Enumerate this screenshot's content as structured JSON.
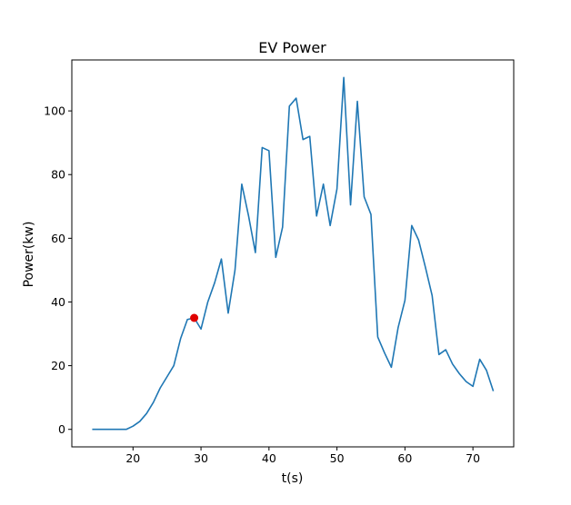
{
  "chart_data": {
    "type": "line",
    "title": "EV Power",
    "xlabel": "t(s)",
    "ylabel": "Power(kw)",
    "xlim": [
      11,
      76
    ],
    "ylim": [
      -5.5,
      116
    ],
    "xticks": [
      20,
      30,
      40,
      50,
      60,
      70
    ],
    "yticks": [
      0,
      20,
      40,
      60,
      80,
      100
    ],
    "grid": false,
    "line_color": "#1f77b4",
    "marker_color": "#e00000",
    "series": [
      {
        "x": [
          14,
          15,
          16,
          17,
          18,
          19,
          20,
          21,
          22,
          23,
          24,
          25,
          26,
          27,
          28,
          29,
          30,
          31,
          32,
          33,
          34,
          35,
          36,
          37,
          38,
          39,
          40,
          41,
          42,
          43,
          44,
          45,
          46,
          47,
          48,
          49,
          50,
          51,
          52,
          53,
          54,
          55,
          56,
          57,
          58,
          59,
          60,
          61,
          62,
          63,
          64,
          65,
          66,
          67,
          68,
          69,
          70,
          71,
          72,
          73
        ],
        "y": [
          0,
          0,
          0,
          0,
          0,
          0,
          1,
          2.5,
          5,
          8.5,
          13,
          16.5,
          20,
          28.5,
          34.5,
          35,
          31.5,
          40,
          46,
          53.5,
          36.5,
          50,
          77,
          67,
          55.5,
          88.5,
          87.5,
          54,
          63.5,
          101.5,
          104,
          91,
          92,
          67,
          77,
          64,
          75.5,
          110.5,
          70.5,
          103,
          73,
          67.5,
          29,
          24,
          19.5,
          32,
          40.5,
          64,
          59.5,
          51,
          42,
          23.5,
          25,
          20.5,
          17.5,
          15,
          13.5,
          22,
          18.5,
          12
        ]
      }
    ],
    "highlight_point": {
      "x": 29,
      "y": 35
    }
  }
}
